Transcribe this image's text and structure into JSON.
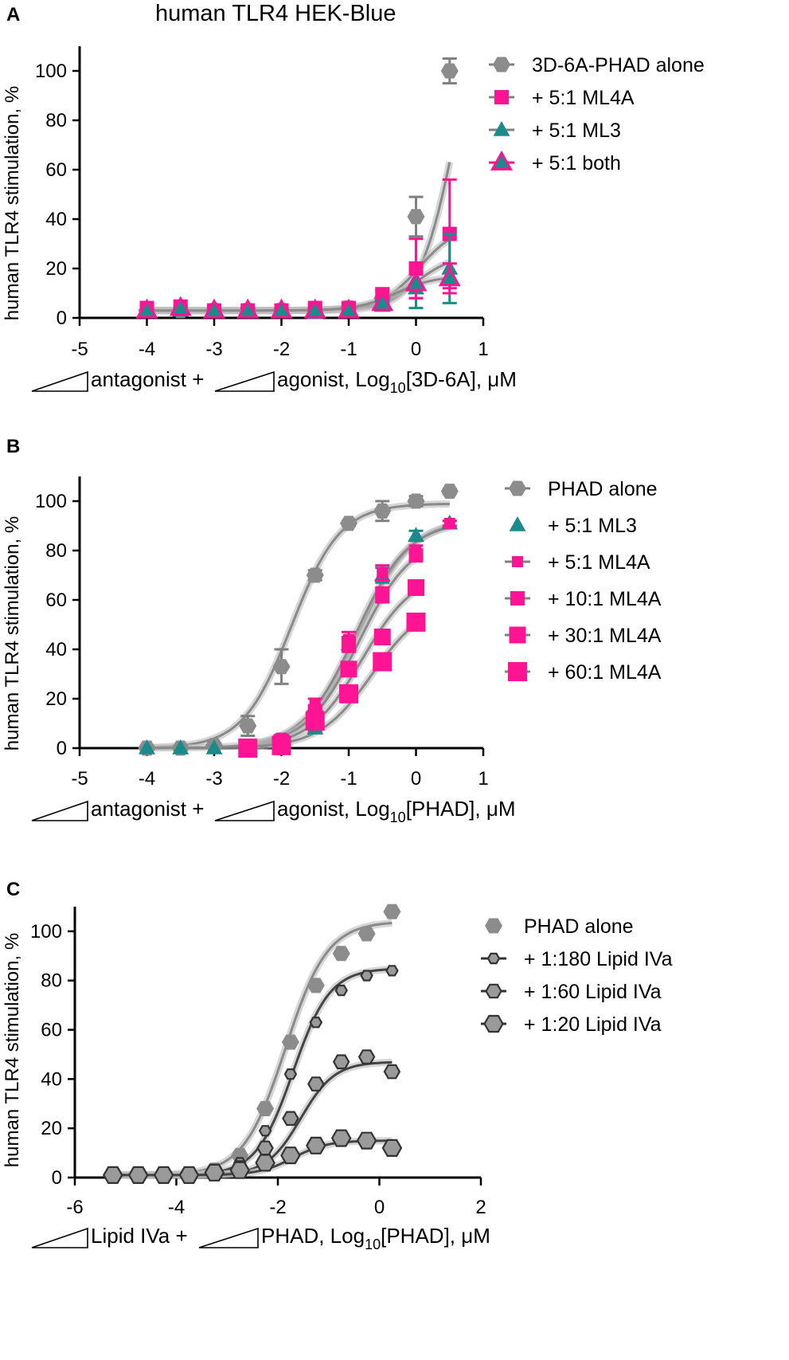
{
  "figure": {
    "title": "human TLR4 HEK-Blue"
  },
  "chart_data": [
    {
      "panel": "A",
      "type": "scatter",
      "ylabel": "human  TLR4 stimulation, %",
      "xlabel": {
        "prefix1": "antagonist +",
        "prefix2": "agonist, Log",
        "sub": "10",
        "suffix": "[3D-6A], μM"
      },
      "xlim": [
        -5,
        1
      ],
      "ylim": [
        0,
        110
      ],
      "xticks": [
        -5,
        -4,
        -3,
        -2,
        -1,
        0,
        1
      ],
      "yticks": [
        0,
        20,
        40,
        60,
        80,
        100
      ],
      "xtick_labels": [
        "-5",
        "-4",
        "-3",
        "-2",
        "-1",
        "0",
        "1"
      ],
      "ytick_labels": [
        "0",
        "20",
        "40",
        "60",
        "80",
        "100"
      ],
      "series": [
        {
          "name": "3D-6A-PHAD alone",
          "marker": "hexagon",
          "color": "#8c8c8c",
          "x": [
            -4,
            -3.5,
            -3,
            -2.5,
            -2,
            -1.5,
            -1,
            -0.5,
            0,
            0.5
          ],
          "y": [
            3,
            3,
            3,
            3,
            3,
            3,
            4,
            8,
            41,
            100
          ],
          "err": [
            2,
            2,
            1,
            1,
            1,
            1,
            2,
            3,
            8,
            5
          ],
          "fit": {
            "bottom": 3,
            "top": 150,
            "ec50": 0.6,
            "hill": 1.6
          }
        },
        {
          "name": "+ 5:1 ML4A",
          "marker": "square",
          "color": "#ff1493",
          "x": [
            -4,
            -3.5,
            -3,
            -2.5,
            -2,
            -1.5,
            -1,
            -0.5,
            0,
            0.5
          ],
          "y": [
            4,
            4,
            3,
            3,
            3,
            4,
            4,
            9,
            20,
            34
          ],
          "err": [
            2,
            3,
            1,
            1,
            1,
            1,
            2,
            3,
            12,
            22
          ],
          "fit": {
            "bottom": 3,
            "top": 38,
            "ec50": 0.05,
            "hill": 1.5
          }
        },
        {
          "name": "+ 5:1 ML3",
          "marker": "triangle",
          "color": "#1a8a8a",
          "x": [
            -4,
            -3.5,
            -3,
            -2.5,
            -2,
            -1.5,
            -1,
            -0.5,
            0,
            0.5
          ],
          "y": [
            3,
            3,
            3,
            3,
            3,
            2,
            3,
            5,
            12,
            20
          ],
          "err": [
            1,
            1,
            1,
            1,
            1,
            1,
            1,
            2,
            8,
            14
          ],
          "fit": {
            "bottom": 3,
            "top": 26,
            "ec50": 0.0,
            "hill": 1.5
          }
        },
        {
          "name": "+ 5:1 both",
          "marker": "triangle-open",
          "color": "#ff1493",
          "x": [
            -4,
            -3.5,
            -3,
            -2.5,
            -2,
            -1.5,
            -1,
            -0.5,
            0,
            0.5
          ],
          "y": [
            3,
            4,
            3,
            3,
            3,
            3,
            3,
            6,
            14,
            16
          ],
          "err": [
            1,
            1,
            1,
            1,
            1,
            1,
            1,
            2,
            6,
            6
          ],
          "fit": {
            "bottom": 3,
            "top": 17,
            "ec50": -0.3,
            "hill": 1.5
          }
        }
      ]
    },
    {
      "panel": "B",
      "type": "scatter",
      "ylabel": "human  TLR4 stimulation, %",
      "xlabel": {
        "prefix1": "antagonist +",
        "prefix2": "agonist, Log",
        "sub": "10",
        "suffix": "[PHAD], μM"
      },
      "xlim": [
        -5,
        1
      ],
      "ylim": [
        0,
        110
      ],
      "xticks": [
        -5,
        -4,
        -3,
        -2,
        -1,
        0,
        1
      ],
      "yticks": [
        0,
        20,
        40,
        60,
        80,
        100
      ],
      "xtick_labels": [
        "-5",
        "-4",
        "-3",
        "-2",
        "-1",
        "0",
        "1"
      ],
      "ytick_labels": [
        "0",
        "20",
        "40",
        "60",
        "80",
        "100"
      ],
      "series": [
        {
          "name": "PHAD alone",
          "marker": "hexagon",
          "color": "#8c8c8c",
          "x": [
            -4,
            -3.5,
            -3,
            -2.5,
            -2,
            -1.5,
            -1,
            -0.5,
            0,
            0.5
          ],
          "y": [
            0,
            0,
            1,
            9,
            33,
            70,
            91,
            96,
            100,
            104
          ],
          "err": [
            1,
            1,
            1,
            4,
            7,
            2,
            1,
            4,
            2,
            1
          ],
          "fit": {
            "bottom": 0,
            "top": 99,
            "ec50": -1.85,
            "hill": 1.2
          }
        },
        {
          "name": "+ 5:1 ML3",
          "marker": "triangle",
          "color": "#1a8a8a",
          "x": [
            -4,
            -3.5,
            -3,
            -2.5,
            -2,
            -1.5,
            -1,
            -0.5,
            0,
            0.5
          ],
          "y": [
            0,
            0,
            0,
            0,
            0,
            8,
            42,
            70,
            86,
            91
          ],
          "err": [
            0,
            0,
            0,
            0,
            0,
            1,
            3,
            3,
            2,
            1
          ],
          "fit": {
            "bottom": 0,
            "top": 93,
            "ec50": -0.85,
            "hill": 1.1
          }
        },
        {
          "name": "+ 5:1 ML4A",
          "marker": "square-sm",
          "color": "#ff1493",
          "x": [
            -2.5,
            -2,
            -1.5,
            -1,
            -0.5,
            0,
            0.5
          ],
          "y": [
            1,
            4,
            18,
            44,
            71,
            80,
            91
          ],
          "err": [
            1,
            1,
            2,
            3,
            3,
            2,
            1
          ],
          "fit": {
            "bottom": 0,
            "top": 92,
            "ec50": -0.9,
            "hill": 1.1
          }
        },
        {
          "name": "+ 10:1 ML4A",
          "marker": "square-md",
          "color": "#ff1493",
          "x": [
            -2.5,
            -2,
            -1.5,
            -1,
            -0.5,
            0
          ],
          "y": [
            1,
            3,
            15,
            42,
            62,
            78
          ],
          "err": [
            1,
            1,
            2,
            3,
            3,
            2
          ],
          "fit": {
            "bottom": 0,
            "top": 86,
            "ec50": -0.85,
            "hill": 1.1
          }
        },
        {
          "name": "+ 30:1 ML4A",
          "marker": "square-lg",
          "color": "#ff1493",
          "x": [
            -2.5,
            -2,
            -1.5,
            -1,
            -0.5,
            0
          ],
          "y": [
            0,
            2,
            12,
            32,
            45,
            65
          ],
          "err": [
            1,
            1,
            2,
            2,
            2,
            2
          ],
          "fit": {
            "bottom": 0,
            "top": 72,
            "ec50": -0.8,
            "hill": 1.1
          }
        },
        {
          "name": "+ 60:1 ML4A",
          "marker": "square-xl",
          "color": "#ff1493",
          "x": [
            -2.5,
            -2,
            -1.5,
            -1,
            -0.5,
            0
          ],
          "y": [
            0,
            1,
            11,
            22,
            35,
            51
          ],
          "err": [
            1,
            1,
            1,
            2,
            2,
            2
          ],
          "fit": {
            "bottom": 0,
            "top": 60,
            "ec50": -0.65,
            "hill": 1.1
          }
        }
      ]
    },
    {
      "panel": "C",
      "type": "scatter",
      "ylabel": "human  TLR4 stimulation, %",
      "xlabel": {
        "prefix1": "Lipid  IVa +",
        "prefix2": "PHAD, Log",
        "sub": "10",
        "suffix": "[PHAD], μM"
      },
      "xlim": [
        -6,
        2
      ],
      "ylim": [
        0,
        110
      ],
      "xticks": [
        -6,
        -4,
        -2,
        0,
        2
      ],
      "yticks": [
        0,
        20,
        40,
        60,
        80,
        100
      ],
      "xtick_labels": [
        "-6",
        "-4",
        "-2",
        "0",
        "2"
      ],
      "ytick_labels": [
        "0",
        "20",
        "40",
        "60",
        "80",
        "100"
      ],
      "series": [
        {
          "name": "PHAD alone",
          "marker": "hexagon",
          "color": "#8c8c8c",
          "x": [
            -5.25,
            -4.75,
            -4.25,
            -3.75,
            -3.25,
            -2.75,
            -2.25,
            -1.75,
            -1.25,
            -0.75,
            -0.25,
            0.25
          ],
          "y": [
            1,
            1,
            1,
            1,
            3,
            9,
            28,
            55,
            78,
            91,
            99,
            108
          ],
          "fit": {
            "bottom": 1,
            "top": 104,
            "ec50": -1.85,
            "hill": 1.05
          }
        },
        {
          "name": "+ 1:180 Lipid IVa",
          "marker": "hex-open-sm",
          "color": "#555555",
          "x": [
            -5.25,
            -4.75,
            -4.25,
            -3.75,
            -3.25,
            -2.75,
            -2.25,
            -1.75,
            -1.25,
            -0.75,
            -0.25,
            0.25
          ],
          "y": [
            1,
            1,
            1,
            1,
            2,
            6,
            19,
            42,
            63,
            76,
            82,
            84
          ],
          "fit": {
            "bottom": 1,
            "top": 85,
            "ec50": -1.7,
            "hill": 1.2
          }
        },
        {
          "name": "+ 1:60 Lipid IVa",
          "marker": "hex-open-md",
          "color": "#555555",
          "x": [
            -5.25,
            -4.75,
            -4.25,
            -3.75,
            -3.25,
            -2.75,
            -2.25,
            -1.75,
            -1.25,
            -0.75,
            -0.25,
            0.25
          ],
          "y": [
            1,
            1,
            1,
            1,
            2,
            4,
            12,
            24,
            38,
            47,
            49,
            43
          ],
          "fit": {
            "bottom": 1,
            "top": 47,
            "ec50": -1.55,
            "hill": 1.3
          }
        },
        {
          "name": "+ 1:20 Lipid IVa",
          "marker": "hex-open-lg",
          "color": "#555555",
          "x": [
            -5.25,
            -4.75,
            -4.25,
            -3.75,
            -3.25,
            -2.75,
            -2.25,
            -1.75,
            -1.25,
            -0.75,
            -0.25,
            0.25
          ],
          "y": [
            1,
            1,
            1,
            1,
            2,
            3,
            6,
            9,
            13,
            16,
            15,
            12
          ],
          "fit": {
            "bottom": 1,
            "top": 15,
            "ec50": -1.7,
            "hill": 1.3
          }
        }
      ]
    }
  ]
}
